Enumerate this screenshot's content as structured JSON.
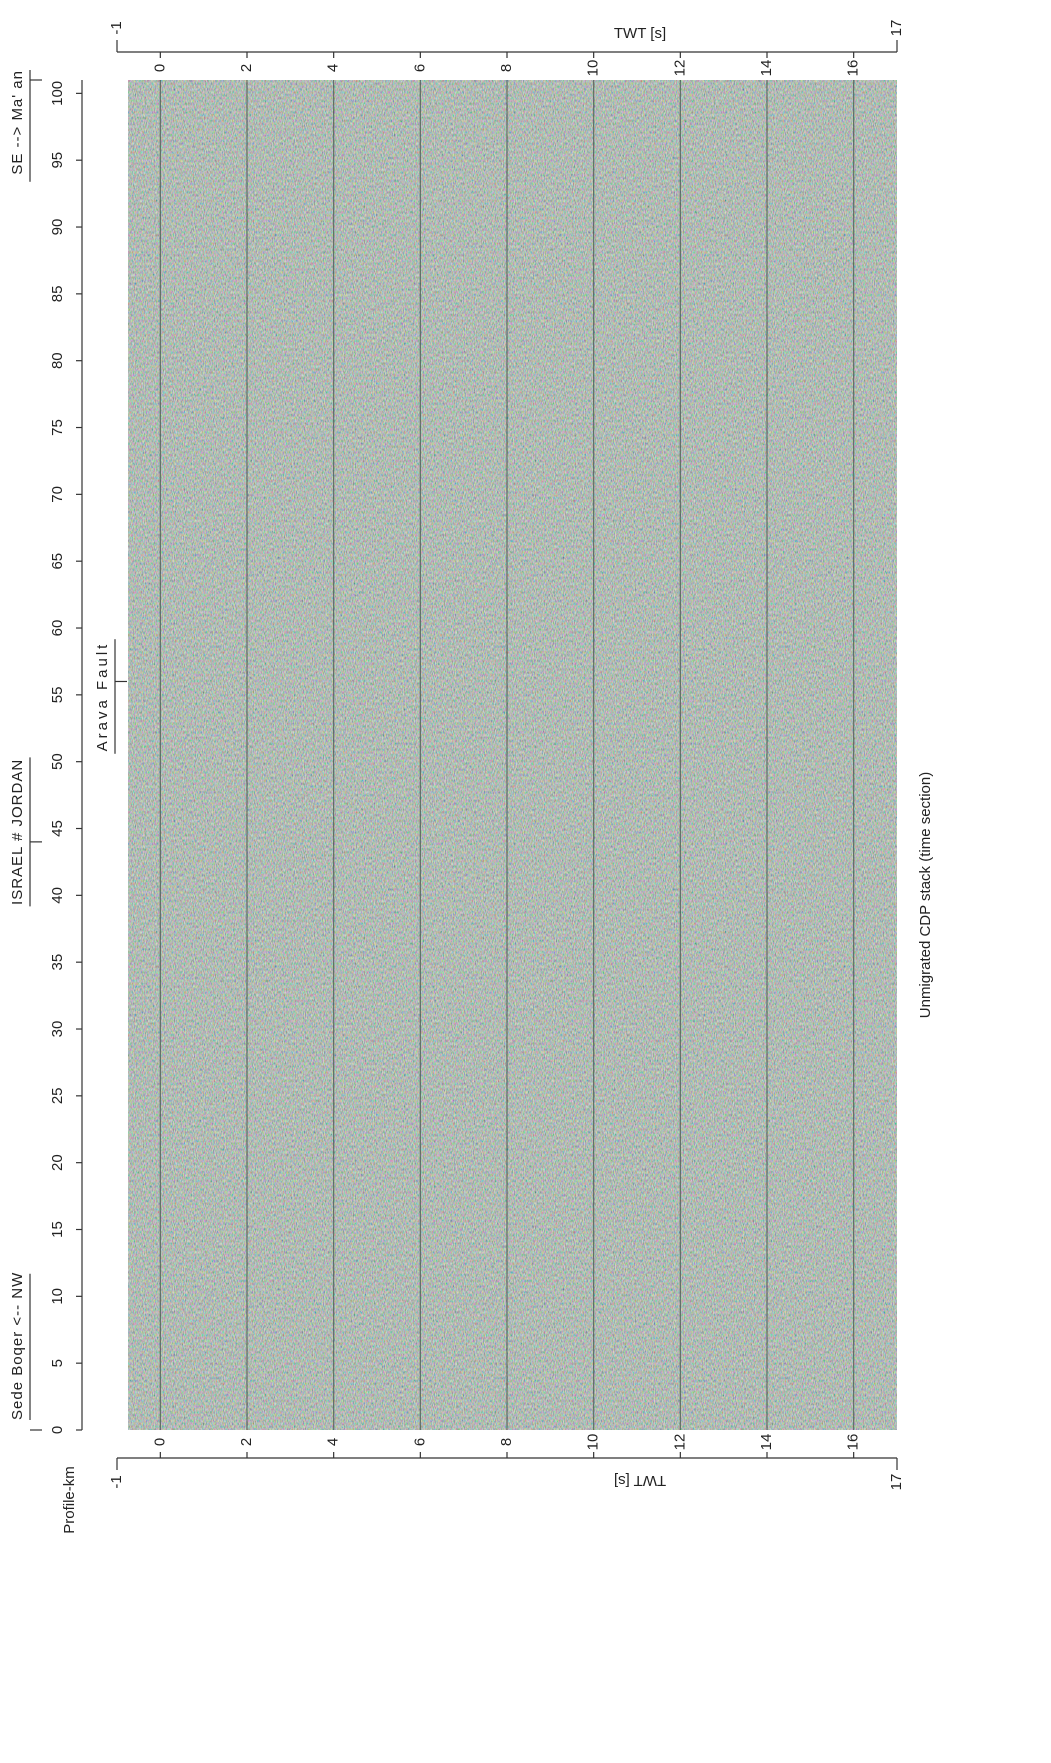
{
  "chart_data": {
    "type": "seismic-section",
    "title": "Unmigrated CDP stack (time section)",
    "x_label": "Profile-km",
    "y_label": "TWT [s]",
    "xlim": [
      0,
      101
    ],
    "xticks": [
      0,
      5,
      10,
      15,
      20,
      25,
      30,
      35,
      40,
      45,
      50,
      55,
      60,
      65,
      70,
      75,
      80,
      85,
      90,
      95,
      100
    ],
    "ylim": [
      -1,
      17
    ],
    "yticks": [
      -1,
      0,
      2,
      4,
      6,
      8,
      10,
      12,
      14,
      16,
      17
    ],
    "grid": true,
    "annotations": [
      {
        "text": "Sede Boqer <-- NW",
        "x": 0
      },
      {
        "text": "ISRAEL # JORDAN",
        "x": 44
      },
      {
        "text": "Arava Fault",
        "x": 56
      },
      {
        "text": "SE --> Ma' an",
        "x": 101
      }
    ]
  }
}
